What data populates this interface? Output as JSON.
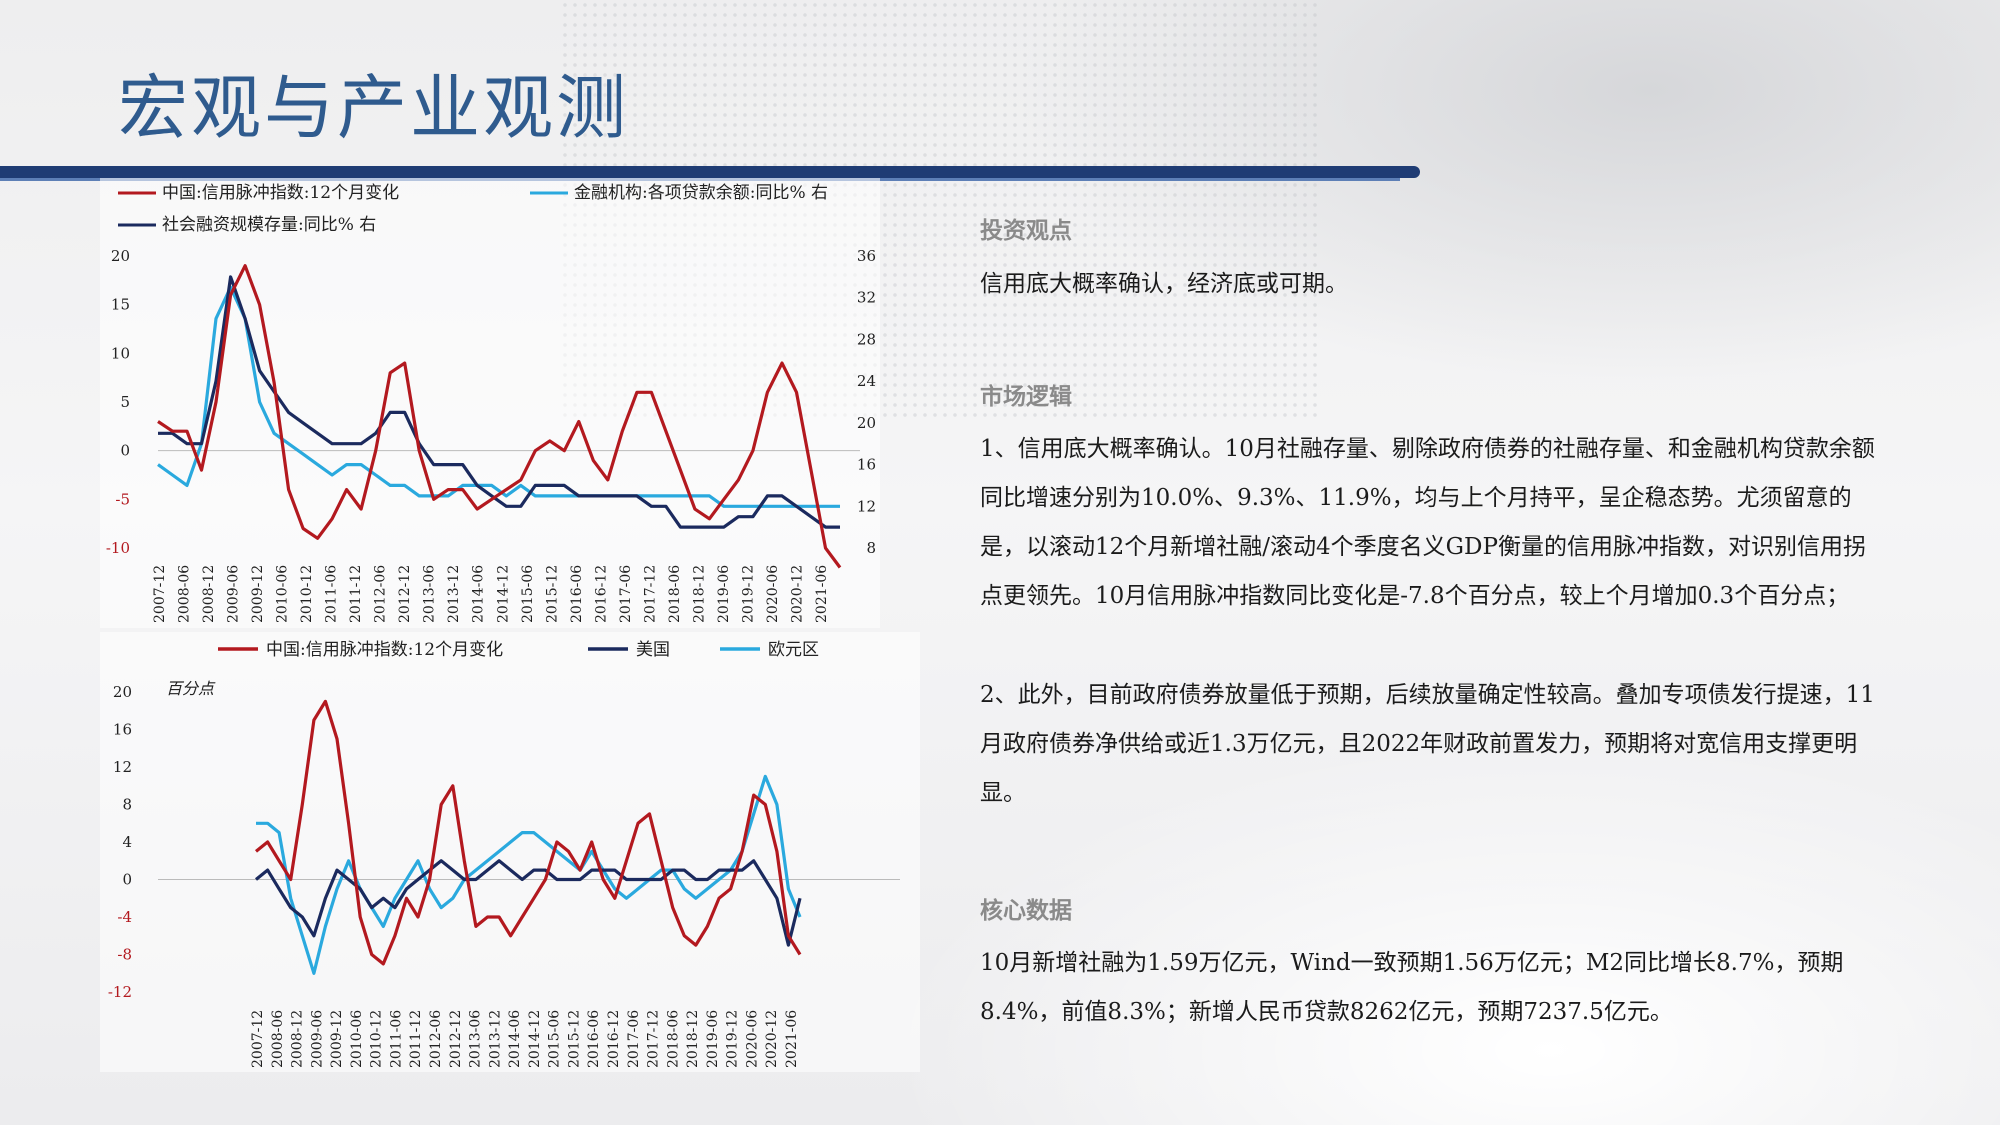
{
  "page": {
    "title": "宏观与产业观测"
  },
  "right": {
    "investment_view": {
      "heading": "投资观点",
      "text": "信用底大概率确认，经济底或可期。"
    },
    "market_logic": {
      "heading": "市场逻辑",
      "p1": "1、信用底大概率确认。10月社融存量、剔除政府债券的社融存量、和金融机构贷款余额同比增速分别为10.0%、9.3%、11.9%，均与上个月持平，呈企稳态势。尤须留意的是，以滚动12个月新增社融/滚动4个季度名义GDP衡量的信用脉冲指数，对识别信用拐点更领先。10月信用脉冲指数同比变化是-7.8个百分点，较上个月增加0.3个百分点；",
      "p2": "2、此外，目前政府债券放量低于预期，后续放量确定性较高。叠加专项债发行提速，11月政府债券净供给或近1.3万亿元，且2022年财政前置发力，预期将对宽信用支撑更明显。"
    },
    "core_data": {
      "heading": "核心数据",
      "text": "10月新增社融为1.59万亿元，Wind一致预期1.56万亿元；M2同比增长8.7%，预期8.4%，前值8.3%；新增人民币贷款8262亿元，预期7237.5亿元。"
    }
  },
  "colors": {
    "red": "#b3191f",
    "navy": "#1b2a5e",
    "cyan": "#2aa9de",
    "title_blue": "#2f5b8e"
  },
  "chart_data": [
    {
      "type": "line",
      "legend": [
        "中国:信用脉冲指数:12个月变化",
        "金融机构:各项贷款余额:同比% 右",
        "社会融资规模存量:同比% 右"
      ],
      "y_left_ticks": [
        "20",
        "15",
        "10",
        "5",
        "0",
        "-5",
        "-10"
      ],
      "y_right_ticks": [
        "36",
        "32",
        "28",
        "24",
        "20",
        "16",
        "12",
        "8"
      ],
      "x_ticks": [
        "2007-12",
        "2008-06",
        "2008-12",
        "2009-06",
        "2009-12",
        "2010-06",
        "2010-12",
        "2011-06",
        "2011-12",
        "2012-06",
        "2012-12",
        "2013-06",
        "2013-12",
        "2014-06",
        "2014-12",
        "2015-06",
        "2015-12",
        "2016-06",
        "2016-12",
        "2017-06",
        "2017-12",
        "2018-06",
        "2018-12",
        "2019-06",
        "2019-12",
        "2020-06",
        "2020-12",
        "2021-06"
      ],
      "ylim_left": [
        -10,
        20
      ],
      "ylim_right": [
        8,
        36
      ],
      "series": [
        {
          "name": "中国:信用脉冲指数:12个月变化",
          "axis": "left",
          "color": "#b3191f",
          "values": [
            3,
            2,
            2,
            -2,
            5,
            16,
            19,
            15,
            7,
            -4,
            -8,
            -9,
            -7,
            -4,
            -6,
            0,
            8,
            9,
            0,
            -5,
            -4,
            -4,
            -6,
            -5,
            -4,
            -3,
            0,
            1,
            0,
            3,
            -1,
            -3,
            2,
            6,
            6,
            2,
            -2,
            -6,
            -7,
            -5,
            -3,
            0,
            6,
            9,
            6,
            -2,
            -10,
            -12
          ]
        },
        {
          "name": "金融机构:各项贷款余额:同比% 右",
          "axis": "right",
          "color": "#2aa9de",
          "values": [
            16,
            15,
            14,
            18,
            30,
            33,
            30,
            22,
            19,
            18,
            17,
            16,
            15,
            16,
            16,
            15,
            14,
            14,
            13,
            13,
            13,
            14,
            14,
            14,
            13,
            14,
            13,
            13,
            13,
            13,
            13,
            13,
            13,
            13,
            13,
            13,
            13,
            13,
            13,
            12,
            12,
            12,
            12,
            12,
            12,
            12,
            12,
            12
          ]
        },
        {
          "name": "社会融资规模存量:同比% 右",
          "axis": "right",
          "color": "#1b2a5e",
          "values": [
            19,
            19,
            18,
            18,
            24,
            34,
            30,
            25,
            23,
            21,
            20,
            19,
            18,
            18,
            18,
            19,
            21,
            21,
            18,
            16,
            16,
            16,
            14,
            13,
            12,
            12,
            14,
            14,
            14,
            13,
            13,
            13,
            13,
            13,
            12,
            12,
            10,
            10,
            10,
            10,
            11,
            11,
            13,
            13,
            12,
            11,
            10,
            10
          ]
        }
      ]
    },
    {
      "type": "line",
      "legend": [
        "中国:信用脉冲指数:12个月变化",
        "美国",
        "欧元区"
      ],
      "unit": "百分点",
      "y_ticks": [
        "20",
        "16",
        "12",
        "8",
        "4",
        "0",
        "-4",
        "-8",
        "-12"
      ],
      "x_ticks": [
        "2007-12",
        "2008-06",
        "2008-12",
        "2009-06",
        "2009-12",
        "2010-06",
        "2010-12",
        "2011-06",
        "2011-12",
        "2012-06",
        "2012-12",
        "2013-06",
        "2013-12",
        "2014-06",
        "2014-12",
        "2015-06",
        "2015-12",
        "2016-06",
        "2016-12",
        "2017-06",
        "2017-12",
        "2018-06",
        "2018-12",
        "2019-06",
        "2019-12",
        "2020-06",
        "2020-12",
        "2021-06"
      ],
      "ylim": [
        -12,
        20
      ],
      "series": [
        {
          "name": "中国:信用脉冲指数:12个月变化",
          "color": "#b3191f",
          "values": [
            3,
            4,
            2,
            0,
            8,
            17,
            19,
            15,
            6,
            -4,
            -8,
            -9,
            -6,
            -2,
            -4,
            0,
            8,
            10,
            2,
            -5,
            -4,
            -4,
            -6,
            -4,
            -2,
            0,
            4,
            3,
            1,
            4,
            0,
            -2,
            2,
            6,
            7,
            2,
            -3,
            -6,
            -7,
            -5,
            -2,
            -1,
            3,
            9,
            8,
            3,
            -6,
            -8
          ]
        },
        {
          "name": "美国",
          "color": "#1b2a5e",
          "values": [
            0,
            1,
            -1,
            -3,
            -4,
            -6,
            -2,
            1,
            0,
            -1,
            -3,
            -2,
            -3,
            -1,
            0,
            1,
            2,
            1,
            0,
            0,
            1,
            2,
            1,
            0,
            1,
            1,
            0,
            0,
            0,
            1,
            1,
            1,
            0,
            0,
            0,
            0,
            1,
            1,
            0,
            0,
            1,
            1,
            1,
            2,
            0,
            -2,
            -7,
            -2
          ]
        },
        {
          "name": "欧元区",
          "color": "#2aa9de",
          "values": [
            6,
            6,
            5,
            -2,
            -6,
            -10,
            -5,
            -1,
            2,
            -1,
            -3,
            -5,
            -2,
            0,
            2,
            -1,
            -3,
            -2,
            0,
            1,
            2,
            3,
            4,
            5,
            5,
            4,
            3,
            2,
            1,
            3,
            1,
            -1,
            -2,
            -1,
            0,
            1,
            1,
            -1,
            -2,
            -1,
            0,
            1,
            3,
            7,
            11,
            8,
            -1,
            -4
          ]
        }
      ]
    }
  ]
}
